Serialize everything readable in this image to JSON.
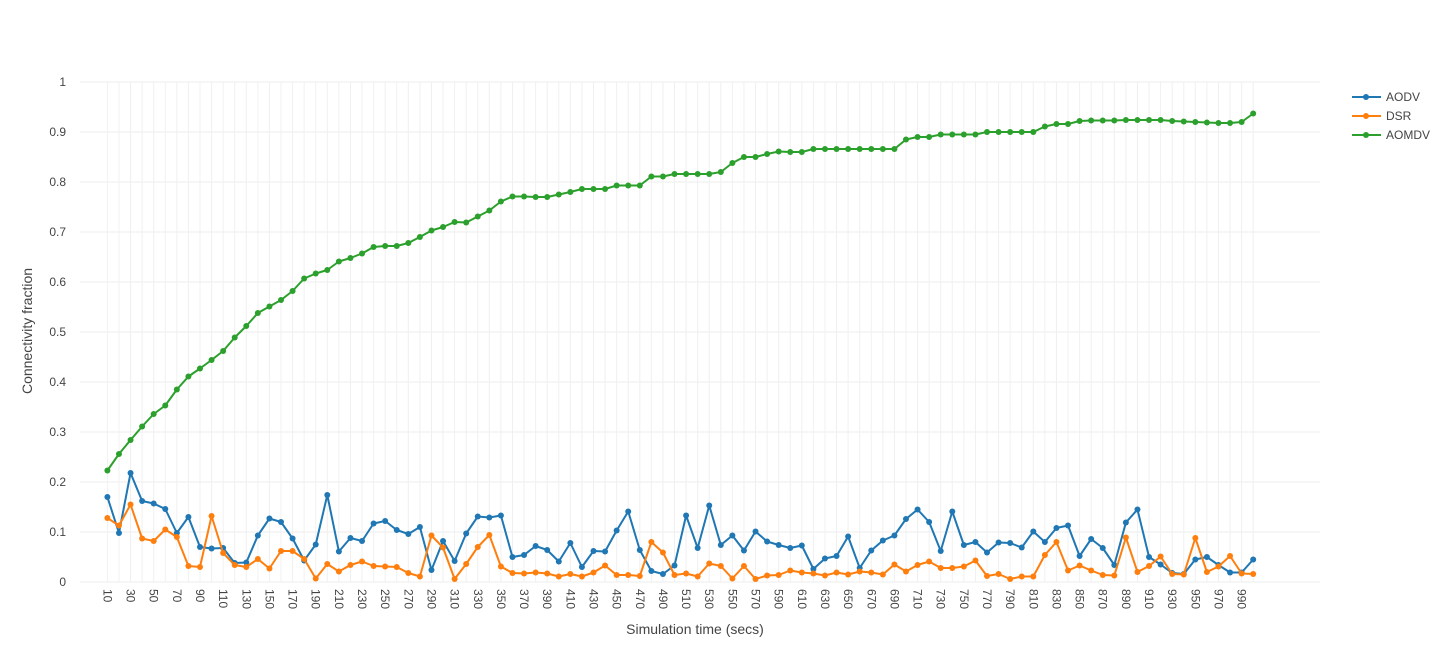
{
  "chart_data": {
    "type": "line",
    "xlabel": "Simulation time (secs)",
    "ylabel": "Connectivity fraction",
    "ylim": [
      0,
      1
    ],
    "y_ticks": [
      "0",
      "0.1",
      "0.2",
      "0.3",
      "0.4",
      "0.5",
      "0.6",
      "0.7",
      "0.8",
      "0.9",
      "1"
    ],
    "x_tick_labels": [
      "10",
      "30",
      "50",
      "70",
      "90",
      "110",
      "130",
      "150",
      "170",
      "190",
      "210",
      "230",
      "250",
      "270",
      "290",
      "310",
      "330",
      "350",
      "370",
      "390",
      "410",
      "430",
      "450",
      "470",
      "490",
      "510",
      "530",
      "550",
      "570",
      "590",
      "610",
      "630",
      "650",
      "670",
      "690",
      "710",
      "730",
      "750",
      "770",
      "790",
      "810",
      "830",
      "850",
      "870",
      "890",
      "910",
      "930",
      "950",
      "970",
      "990"
    ],
    "grid": true,
    "legend_position": "top-right",
    "x": [
      10,
      20,
      30,
      40,
      50,
      60,
      70,
      80,
      90,
      100,
      110,
      120,
      130,
      140,
      150,
      160,
      170,
      180,
      190,
      200,
      210,
      220,
      230,
      240,
      250,
      260,
      270,
      280,
      290,
      300,
      310,
      320,
      330,
      340,
      350,
      360,
      370,
      380,
      390,
      400,
      410,
      420,
      430,
      440,
      450,
      460,
      470,
      480,
      490,
      500,
      510,
      520,
      530,
      540,
      550,
      560,
      570,
      580,
      590,
      600,
      610,
      620,
      630,
      640,
      650,
      660,
      670,
      680,
      690,
      700,
      710,
      720,
      730,
      740,
      750,
      760,
      770,
      780,
      790,
      800,
      810,
      820,
      830,
      840,
      850,
      860,
      870,
      880,
      890,
      900,
      910,
      920,
      930,
      940,
      950,
      960,
      970,
      980,
      990,
      1000
    ],
    "series": [
      {
        "name": "AODV",
        "color": "#1f77b4",
        "values": [
          0.17,
          0.098,
          0.218,
          0.162,
          0.157,
          0.146,
          0.098,
          0.13,
          0.07,
          0.067,
          0.068,
          0.038,
          0.039,
          0.093,
          0.127,
          0.12,
          0.087,
          0.043,
          0.075,
          0.174,
          0.061,
          0.088,
          0.082,
          0.117,
          0.122,
          0.104,
          0.096,
          0.11,
          0.024,
          0.082,
          0.042,
          0.097,
          0.131,
          0.129,
          0.133,
          0.05,
          0.054,
          0.072,
          0.064,
          0.041,
          0.078,
          0.03,
          0.062,
          0.061,
          0.103,
          0.141,
          0.064,
          0.022,
          0.016,
          0.033,
          0.133,
          0.068,
          0.153,
          0.074,
          0.093,
          0.063,
          0.101,
          0.081,
          0.074,
          0.068,
          0.073,
          0.026,
          0.047,
          0.052,
          0.091,
          0.028,
          0.063,
          0.083,
          0.093,
          0.126,
          0.145,
          0.12,
          0.062,
          0.141,
          0.074,
          0.08,
          0.059,
          0.079,
          0.078,
          0.069,
          0.101,
          0.08,
          0.108,
          0.113,
          0.052,
          0.086,
          0.068,
          0.034,
          0.119,
          0.145,
          0.05,
          0.035,
          0.018,
          0.016,
          0.045,
          0.05,
          0.034,
          0.019,
          0.019,
          0.045
        ]
      },
      {
        "name": "DSR",
        "color": "#ff7f0e",
        "values": [
          0.128,
          0.113,
          0.155,
          0.087,
          0.082,
          0.105,
          0.09,
          0.032,
          0.03,
          0.132,
          0.058,
          0.034,
          0.03,
          0.046,
          0.027,
          0.062,
          0.062,
          0.046,
          0.007,
          0.036,
          0.021,
          0.034,
          0.041,
          0.032,
          0.031,
          0.03,
          0.018,
          0.011,
          0.093,
          0.069,
          0.006,
          0.036,
          0.07,
          0.094,
          0.031,
          0.018,
          0.017,
          0.019,
          0.017,
          0.011,
          0.016,
          0.011,
          0.019,
          0.033,
          0.014,
          0.014,
          0.012,
          0.08,
          0.059,
          0.014,
          0.017,
          0.011,
          0.037,
          0.032,
          0.007,
          0.032,
          0.006,
          0.013,
          0.014,
          0.023,
          0.019,
          0.017,
          0.013,
          0.019,
          0.015,
          0.021,
          0.019,
          0.015,
          0.035,
          0.021,
          0.034,
          0.041,
          0.028,
          0.028,
          0.031,
          0.043,
          0.012,
          0.016,
          0.006,
          0.011,
          0.011,
          0.054,
          0.08,
          0.023,
          0.033,
          0.023,
          0.014,
          0.013,
          0.089,
          0.02,
          0.032,
          0.051,
          0.016,
          0.015,
          0.088,
          0.02,
          0.031,
          0.052,
          0.017,
          0.016
        ]
      },
      {
        "name": "AOMDV",
        "color": "#2ca02c",
        "values": [
          0.223,
          0.256,
          0.284,
          0.311,
          0.336,
          0.353,
          0.385,
          0.411,
          0.427,
          0.444,
          0.462,
          0.489,
          0.512,
          0.538,
          0.551,
          0.564,
          0.582,
          0.607,
          0.617,
          0.624,
          0.641,
          0.648,
          0.657,
          0.67,
          0.672,
          0.672,
          0.678,
          0.69,
          0.703,
          0.71,
          0.72,
          0.719,
          0.731,
          0.743,
          0.761,
          0.771,
          0.771,
          0.77,
          0.77,
          0.775,
          0.78,
          0.786,
          0.786,
          0.786,
          0.793,
          0.793,
          0.793,
          0.811,
          0.811,
          0.816,
          0.816,
          0.816,
          0.816,
          0.82,
          0.838,
          0.85,
          0.85,
          0.856,
          0.861,
          0.86,
          0.86,
          0.866,
          0.866,
          0.866,
          0.866,
          0.866,
          0.866,
          0.866,
          0.866,
          0.885,
          0.89,
          0.89,
          0.895,
          0.895,
          0.895,
          0.895,
          0.9,
          0.9,
          0.9,
          0.9,
          0.9,
          0.911,
          0.916,
          0.916,
          0.922,
          0.923,
          0.923,
          0.923,
          0.924,
          0.924,
          0.924,
          0.924,
          0.922,
          0.921,
          0.92,
          0.919,
          0.918,
          0.918,
          0.92,
          0.937
        ]
      }
    ]
  }
}
